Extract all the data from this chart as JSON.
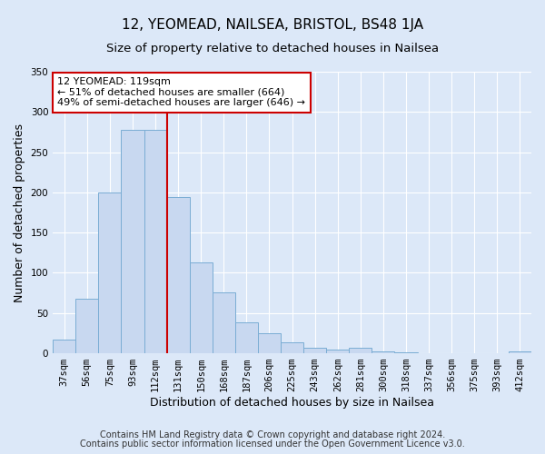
{
  "title": "12, YEOMEAD, NAILSEA, BRISTOL, BS48 1JA",
  "subtitle": "Size of property relative to detached houses in Nailsea",
  "xlabel": "Distribution of detached houses by size in Nailsea",
  "ylabel": "Number of detached properties",
  "bar_labels": [
    "37sqm",
    "56sqm",
    "75sqm",
    "93sqm",
    "112sqm",
    "131sqm",
    "150sqm",
    "168sqm",
    "187sqm",
    "206sqm",
    "225sqm",
    "243sqm",
    "262sqm",
    "281sqm",
    "300sqm",
    "318sqm",
    "337sqm",
    "356sqm",
    "375sqm",
    "393sqm",
    "412sqm"
  ],
  "bar_values": [
    17,
    68,
    200,
    278,
    278,
    194,
    113,
    76,
    39,
    25,
    14,
    7,
    5,
    7,
    2,
    1,
    0,
    0,
    0,
    0,
    2
  ],
  "bar_color": "#c8d8f0",
  "bar_edge_color": "#7aadd4",
  "vline_x_idx": 4,
  "vline_color": "#cc0000",
  "annotation_title": "12 YEOMEAD: 119sqm",
  "annotation_line1": "← 51% of detached houses are smaller (664)",
  "annotation_line2": "49% of semi-detached houses are larger (646) →",
  "annotation_box_color": "#ffffff",
  "annotation_box_edge": "#cc0000",
  "ylim": [
    0,
    350
  ],
  "yticks": [
    0,
    50,
    100,
    150,
    200,
    250,
    300,
    350
  ],
  "footnote1": "Contains HM Land Registry data © Crown copyright and database right 2024.",
  "footnote2": "Contains public sector information licensed under the Open Government Licence v3.0.",
  "fig_background_color": "#dce8f8",
  "plot_background_color": "#dce8f8",
  "grid_color": "#ffffff",
  "title_fontsize": 11,
  "subtitle_fontsize": 9.5,
  "axis_label_fontsize": 9,
  "tick_fontsize": 7.5,
  "footnote_fontsize": 7
}
